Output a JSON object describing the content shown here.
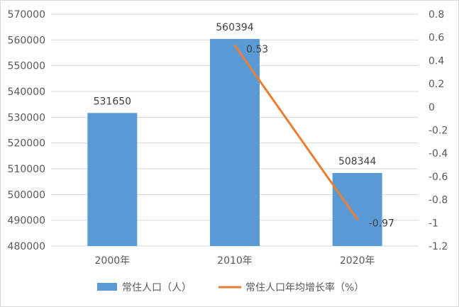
{
  "chart_data": {
    "type": "bar+line",
    "categories": [
      "2000年",
      "2010年",
      "2020年"
    ],
    "series": [
      {
        "name": "常住人口（人）",
        "type": "bar",
        "axis": "left",
        "values": [
          531650,
          560394,
          508344
        ],
        "labels": [
          "531650",
          "560394",
          "508344"
        ],
        "color": "#5b9bd5"
      },
      {
        "name": "常住人口年均增长率（%）",
        "type": "line",
        "axis": "right",
        "points": [
          {
            "category": "2010年",
            "value": 0.53,
            "label": "0.53"
          },
          {
            "category": "2020年",
            "value": -0.97,
            "label": "-0.97"
          }
        ],
        "color": "#ed7d31"
      }
    ],
    "left_axis": {
      "ylim": [
        480000,
        570000
      ],
      "ticks": [
        "480000",
        "490000",
        "500000",
        "510000",
        "520000",
        "530000",
        "540000",
        "550000",
        "560000",
        "570000"
      ]
    },
    "right_axis": {
      "ylim": [
        -1.2,
        0.8
      ],
      "ticks": [
        "-1.2",
        "-1",
        "-0.8",
        "-0.6",
        "-0.4",
        "-0.2",
        "0",
        "0.2",
        "0.4",
        "0.6",
        "0.8"
      ]
    },
    "grid": true,
    "legend_position": "bottom"
  }
}
